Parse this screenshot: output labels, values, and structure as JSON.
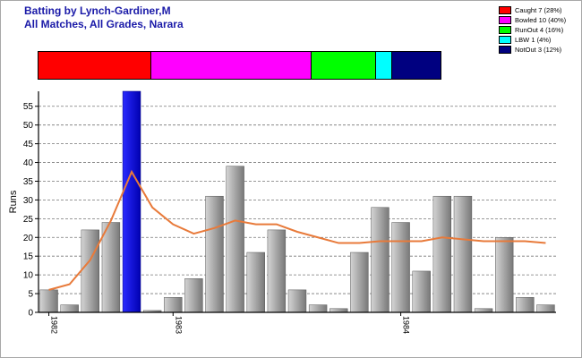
{
  "header": {
    "title_line1": "Batting by Lynch-Gardiner,M",
    "title_line2": "All Matches, All Grades, Narara"
  },
  "legend": [
    {
      "label": "Caught 7 (28%)",
      "color": "#ff0000"
    },
    {
      "label": "Bowled 10 (40%)",
      "color": "#ff00ff"
    },
    {
      "label": "RunOut 4 (16%)",
      "color": "#00ff00"
    },
    {
      "label": "LBW 1 (4%)",
      "color": "#00ffff"
    },
    {
      "label": "NotOut 3 (12%)",
      "color": "#000080"
    }
  ],
  "dismissals": [
    {
      "name": "Caught",
      "count": 7,
      "color": "#ff0000"
    },
    {
      "name": "Bowled",
      "count": 10,
      "color": "#ff00ff"
    },
    {
      "name": "RunOut",
      "count": 4,
      "color": "#00ff00"
    },
    {
      "name": "LBW",
      "count": 1,
      "color": "#00ffff"
    },
    {
      "name": "NotOut",
      "count": 3,
      "color": "#000080"
    }
  ],
  "chart_data": {
    "type": "bar",
    "ylabel": "Runs",
    "ylim": [
      0,
      59
    ],
    "yticks": [
      0,
      5,
      10,
      15,
      20,
      25,
      30,
      35,
      40,
      45,
      50,
      55
    ],
    "grid": "horizontal dashed",
    "x_tick_labels": [
      {
        "label": "1982",
        "index": 0
      },
      {
        "label": "1983",
        "index": 6
      },
      {
        "label": "1984",
        "index": 17
      }
    ],
    "series": [
      {
        "type": "bar",
        "values": [
          6,
          2,
          22,
          24,
          59,
          0.5,
          4,
          9,
          31,
          39,
          16,
          22,
          6,
          2,
          1,
          16,
          28,
          24,
          11,
          31,
          31,
          1,
          20,
          4,
          2
        ],
        "bar_color": "#a0a0a0",
        "highlight_index": 4,
        "highlight_color": "#0000cc"
      },
      {
        "type": "line",
        "values": [
          6,
          7.5,
          14,
          24.5,
          37.5,
          28,
          23.5,
          21,
          22.5,
          24.5,
          23.5,
          23.5,
          21.5,
          20,
          18.5,
          18.5,
          19,
          19,
          19,
          20,
          19.5,
          19,
          19,
          19,
          18.5
        ],
        "color": "#e87a3a"
      }
    ]
  }
}
